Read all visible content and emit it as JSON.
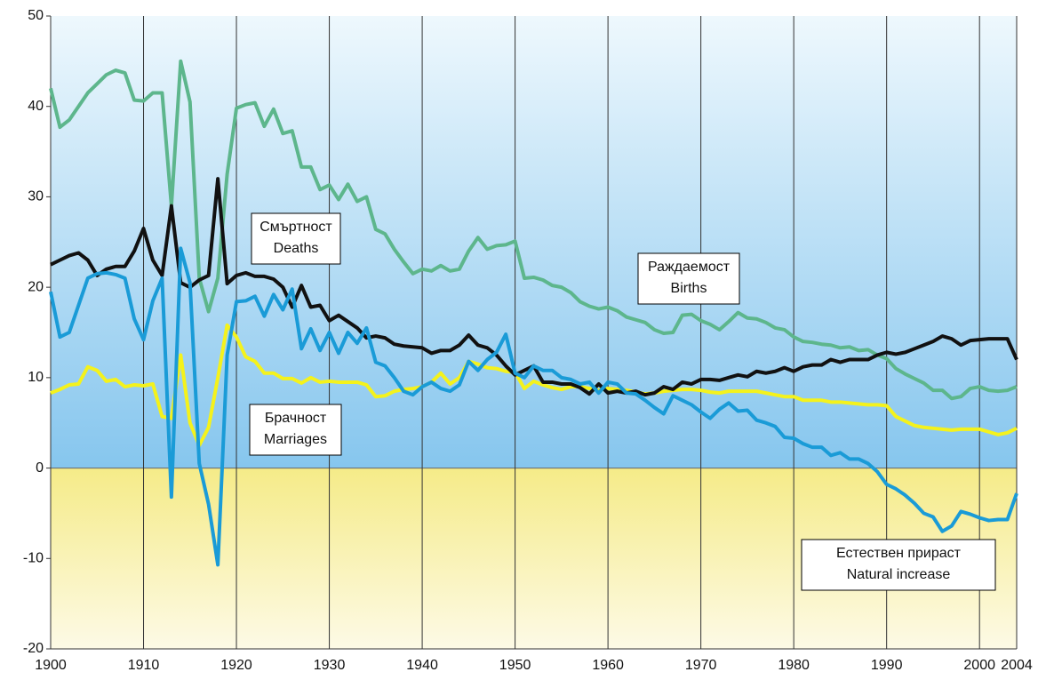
{
  "chart_data": {
    "type": "line",
    "x": [
      1900,
      1901,
      1902,
      1903,
      1904,
      1905,
      1906,
      1907,
      1908,
      1909,
      1910,
      1911,
      1912,
      1913,
      1914,
      1915,
      1916,
      1917,
      1918,
      1919,
      1920,
      1921,
      1922,
      1923,
      1924,
      1925,
      1926,
      1927,
      1928,
      1929,
      1930,
      1931,
      1932,
      1933,
      1934,
      1935,
      1936,
      1937,
      1938,
      1939,
      1940,
      1941,
      1942,
      1943,
      1944,
      1945,
      1946,
      1947,
      1948,
      1949,
      1950,
      1951,
      1952,
      1953,
      1954,
      1955,
      1956,
      1957,
      1958,
      1959,
      1960,
      1961,
      1962,
      1963,
      1964,
      1965,
      1966,
      1967,
      1968,
      1969,
      1970,
      1971,
      1972,
      1973,
      1974,
      1975,
      1976,
      1977,
      1978,
      1979,
      1980,
      1981,
      1982,
      1983,
      1984,
      1985,
      1986,
      1987,
      1988,
      1989,
      1990,
      1991,
      1992,
      1993,
      1994,
      1995,
      1996,
      1997,
      1998,
      1999,
      2000,
      2001,
      2002,
      2003,
      2004
    ],
    "series": [
      {
        "label": [
          "Раждаемост",
          "Births"
        ],
        "color": "#5db68c",
        "values": [
          42,
          37.7,
          38.5,
          40,
          41.5,
          42.5,
          43.5,
          44,
          43.7,
          40.7,
          40.6,
          41.5,
          41.5,
          29,
          45,
          40.5,
          21,
          17.3,
          21,
          32.5,
          39.8,
          40.2,
          40.4,
          37.8,
          39.7,
          37,
          37.3,
          33.3,
          33.3,
          30.8,
          31.3,
          29.7,
          31.4,
          29.5,
          30,
          26.4,
          25.9,
          24.2,
          22.8,
          21.5,
          22,
          21.8,
          22.4,
          21.8,
          22,
          24,
          25.5,
          24.2,
          24.6,
          24.7,
          25.1,
          21,
          21.1,
          20.8,
          20.2,
          20,
          19.4,
          18.4,
          17.9,
          17.6,
          17.8,
          17.4,
          16.7,
          16.4,
          16.1,
          15.3,
          14.9,
          15,
          16.9,
          17,
          16.3,
          15.9,
          15.3,
          16.2,
          17.2,
          16.6,
          16.5,
          16.1,
          15.5,
          15.3,
          14.5,
          14,
          13.9,
          13.7,
          13.6,
          13.3,
          13.4,
          13,
          13.1,
          12.5,
          12.1,
          11,
          10.4,
          9.9,
          9.4,
          8.6,
          8.6,
          7.7,
          7.9,
          8.8,
          9,
          8.6,
          8.5,
          8.6,
          9
        ]
      },
      {
        "label": [
          "Смъртност",
          "Deaths"
        ],
        "color": "#111111",
        "values": [
          22.5,
          23,
          23.5,
          23.8,
          23,
          21.3,
          22,
          22.3,
          22.3,
          24,
          26.5,
          23,
          21.3,
          29,
          20.5,
          20,
          20.8,
          21.3,
          32,
          20.4,
          21.3,
          21.6,
          21.2,
          21.2,
          20.9,
          20,
          17.8,
          20.2,
          17.8,
          18,
          16.3,
          16.9,
          16.2,
          15.5,
          14.4,
          14.6,
          14.4,
          13.7,
          13.5,
          13.4,
          13.3,
          12.7,
          13,
          13,
          13.6,
          14.7,
          13.6,
          13.3,
          12.5,
          11.3,
          10.3,
          10.8,
          11.3,
          9.5,
          9.5,
          9.3,
          9.3,
          8.9,
          8.2,
          9.3,
          8.3,
          8.5,
          8.3,
          8.5,
          8.1,
          8.3,
          9,
          8.7,
          9.5,
          9.3,
          9.8,
          9.8,
          9.7,
          10,
          10.3,
          10.1,
          10.7,
          10.5,
          10.7,
          11.1,
          10.7,
          11.2,
          11.4,
          11.4,
          12,
          11.7,
          12,
          12,
          12,
          12.5,
          12.8,
          12.6,
          12.8,
          13.2,
          13.6,
          14,
          14.6,
          14.3,
          13.6,
          14.1,
          14.2,
          14.3,
          14.3,
          14.3,
          12
        ]
      },
      {
        "label": [
          "Брачност",
          "Marriages"
        ],
        "color": "#f4f21c",
        "values": [
          8.3,
          8.7,
          9.2,
          9.3,
          11.2,
          10.8,
          9.6,
          9.8,
          9,
          9.2,
          9.1,
          9.3,
          5.7,
          5.5,
          12.5,
          5,
          2.5,
          4.5,
          10,
          15.8,
          14.5,
          12.3,
          11.8,
          10.5,
          10.5,
          9.9,
          9.9,
          9.4,
          10,
          9.5,
          9.6,
          9.5,
          9.5,
          9.5,
          9.2,
          7.9,
          8,
          8.5,
          8.7,
          8.8,
          9,
          9.5,
          10.5,
          9.3,
          10,
          11.8,
          11.5,
          11.1,
          11,
          10.7,
          10.6,
          8.8,
          9.6,
          9.2,
          8.9,
          8.7,
          9,
          9,
          8.8,
          8.6,
          8.8,
          8.7,
          8.6,
          8.4,
          8.2,
          8.3,
          8.5,
          8.6,
          8.7,
          8.7,
          8.6,
          8.4,
          8.3,
          8.5,
          8.5,
          8.5,
          8.5,
          8.3,
          8.1,
          7.9,
          7.9,
          7.5,
          7.5,
          7.5,
          7.3,
          7.3,
          7.2,
          7.1,
          7,
          7,
          6.9,
          5.7,
          5.2,
          4.7,
          4.5,
          4.4,
          4.3,
          4.2,
          4.3,
          4.3,
          4.3,
          4,
          3.7,
          3.9,
          4.4
        ]
      },
      {
        "label": [
          "Естествен прираст",
          "Natural increase"
        ],
        "color": "#1a9bd7",
        "values": [
          19.5,
          14.5,
          15,
          18,
          21,
          21.5,
          21.6,
          21.4,
          21,
          16.5,
          14.2,
          18.5,
          21,
          -3.2,
          24.3,
          20.5,
          0.5,
          -4,
          -10.7,
          12.5,
          18.4,
          18.5,
          19,
          16.8,
          19.2,
          17.5,
          19.8,
          13.2,
          15.4,
          13,
          15,
          12.7,
          15,
          13.8,
          15.5,
          11.7,
          11.3,
          10,
          8.5,
          8.1,
          9,
          9.5,
          8.8,
          8.5,
          9.2,
          11.8,
          10.8,
          12,
          12.8,
          14.8,
          10.5,
          10,
          11.3,
          10.8,
          10.8,
          10,
          9.8,
          9.3,
          9.5,
          8.3,
          9.5,
          9.3,
          8.3,
          8.2,
          7.5,
          6.7,
          6,
          8,
          7.5,
          7,
          6.2,
          5.5,
          6.5,
          7.2,
          6.3,
          6.4,
          5.3,
          5,
          4.6,
          3.4,
          3.3,
          2.7,
          2.3,
          2.3,
          1.4,
          1.7,
          1,
          1,
          0.5,
          -0.4,
          -1.8,
          -2.3,
          -3,
          -3.9,
          -5,
          -5.4,
          -7,
          -6.4,
          -4.8,
          -5.1,
          -5.5,
          -5.8,
          -5.7,
          -5.7,
          -2.8
        ]
      }
    ],
    "xlim": [
      1900,
      2004
    ],
    "xticks": [
      1900,
      1910,
      1920,
      1930,
      1940,
      1950,
      1960,
      1970,
      1980,
      1990,
      2000,
      2004
    ],
    "ylim": [
      -20,
      50
    ],
    "yticks": [
      -20,
      -10,
      0,
      10,
      20,
      30,
      40,
      50
    ],
    "grid": true
  }
}
